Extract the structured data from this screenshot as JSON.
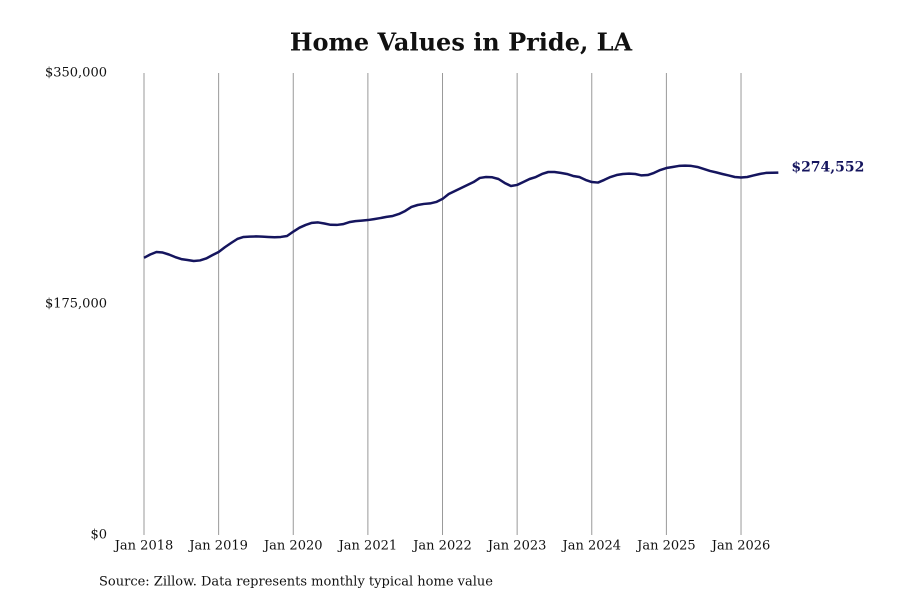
{
  "chart_data": {
    "type": "line",
    "title": "Home Values in Pride, LA",
    "source": "Source: Zillow. Data represents monthly typical home value",
    "x": [
      "2018-01",
      "2018-02",
      "2018-03",
      "2018-04",
      "2018-05",
      "2018-06",
      "2018-07",
      "2018-08",
      "2018-09",
      "2018-10",
      "2018-11",
      "2018-12",
      "2019-01",
      "2019-02",
      "2019-03",
      "2019-04",
      "2019-05",
      "2019-06",
      "2019-07",
      "2019-08",
      "2019-09",
      "2019-10",
      "2019-11",
      "2019-12",
      "2020-01",
      "2020-02",
      "2020-03",
      "2020-04",
      "2020-05",
      "2020-06",
      "2020-07",
      "2020-08",
      "2020-09",
      "2020-10",
      "2020-11",
      "2020-12",
      "2021-01",
      "2021-02",
      "2021-03",
      "2021-04",
      "2021-05",
      "2021-06",
      "2021-07",
      "2021-08",
      "2021-09",
      "2021-10",
      "2021-11",
      "2021-12",
      "2022-01",
      "2022-02",
      "2022-03",
      "2022-04",
      "2022-05",
      "2022-06",
      "2022-07",
      "2022-08",
      "2022-09",
      "2022-10",
      "2022-11",
      "2022-12",
      "2023-01",
      "2023-02",
      "2023-03",
      "2023-04",
      "2023-05",
      "2023-06",
      "2023-07",
      "2023-08",
      "2023-09",
      "2023-10",
      "2023-11",
      "2023-12",
      "2024-01",
      "2024-02",
      "2024-03",
      "2024-04",
      "2024-05",
      "2024-06",
      "2024-07",
      "2024-08",
      "2024-09",
      "2024-10",
      "2024-11",
      "2024-12",
      "2025-01",
      "2025-02",
      "2025-03",
      "2025-04",
      "2025-05",
      "2025-06",
      "2025-07",
      "2025-08",
      "2025-09",
      "2025-10",
      "2025-11",
      "2025-12",
      "2026-01",
      "2026-02",
      "2026-03",
      "2026-04",
      "2026-05",
      "2026-06",
      "2026-07"
    ],
    "series": [
      {
        "name": "Home value",
        "color": "#15155e",
        "values": [
          210000,
          212500,
          214400,
          214000,
          212500,
          210600,
          209000,
          208300,
          207600,
          208000,
          209500,
          212000,
          214400,
          218000,
          221200,
          224250,
          225800,
          226000,
          226200,
          226000,
          225800,
          225600,
          225800,
          226500,
          229800,
          232800,
          234900,
          236500,
          236800,
          236000,
          235000,
          234900,
          235500,
          237000,
          237800,
          238200,
          238600,
          239300,
          240100,
          241000,
          241700,
          243200,
          245500,
          248500,
          250000,
          250800,
          251200,
          252300,
          254600,
          258300,
          260600,
          262900,
          265200,
          267400,
          270500,
          271200,
          271000,
          269700,
          266700,
          264400,
          265200,
          267400,
          269700,
          271200,
          273500,
          275000,
          275000,
          274300,
          273500,
          272000,
          271200,
          269000,
          267400,
          267000,
          269000,
          271200,
          272700,
          273500,
          273800,
          273500,
          272400,
          272700,
          274300,
          276500,
          278000,
          278800,
          279600,
          279800,
          279600,
          278800,
          277300,
          275800,
          274700,
          273500,
          272400,
          271200,
          270800,
          271200,
          272400,
          273500,
          274300,
          274400,
          274552
        ],
        "value_labels": [
          null,
          null,
          null,
          null,
          null,
          null,
          null,
          null,
          null,
          null,
          null,
          null,
          null,
          null,
          null,
          null,
          null,
          null,
          null,
          null,
          null,
          null,
          null,
          null,
          null,
          null,
          null,
          null,
          null,
          null,
          null,
          null,
          null,
          null,
          null,
          null,
          null,
          null,
          null,
          null,
          null,
          null,
          null,
          null,
          null,
          null,
          null,
          null,
          null,
          null,
          null,
          null,
          null,
          null,
          null,
          null,
          null,
          null,
          null,
          null,
          null,
          null,
          null,
          null,
          null,
          null,
          null,
          null,
          null,
          null,
          null,
          null,
          null,
          null,
          null,
          null,
          null,
          null,
          null,
          null,
          null,
          null,
          null,
          null,
          null,
          null,
          null,
          null,
          null,
          null,
          null,
          null,
          null,
          null,
          null,
          null,
          null,
          null,
          null,
          null,
          null,
          null,
          "$274,552"
        ]
      }
    ],
    "xticks": [
      {
        "value": "2018-01",
        "label": "Jan 2018"
      },
      {
        "value": "2019-01",
        "label": "Jan 2019"
      },
      {
        "value": "2020-01",
        "label": "Jan 2020"
      },
      {
        "value": "2021-01",
        "label": "Jan 2021"
      },
      {
        "value": "2022-01",
        "label": "Jan 2022"
      },
      {
        "value": "2023-01",
        "label": "Jan 2023"
      },
      {
        "value": "2024-01",
        "label": "Jan 2024"
      },
      {
        "value": "2025-01",
        "label": "Jan 2025"
      },
      {
        "value": "2026-01",
        "label": "Jan 2026"
      }
    ],
    "ylim": [
      0,
      350000
    ],
    "yticks": [
      {
        "value": 0,
        "label": "$0"
      },
      {
        "value": 175000,
        "label": "$175,000"
      },
      {
        "value": 350000,
        "label": "$350,000"
      }
    ],
    "grid": "x"
  }
}
